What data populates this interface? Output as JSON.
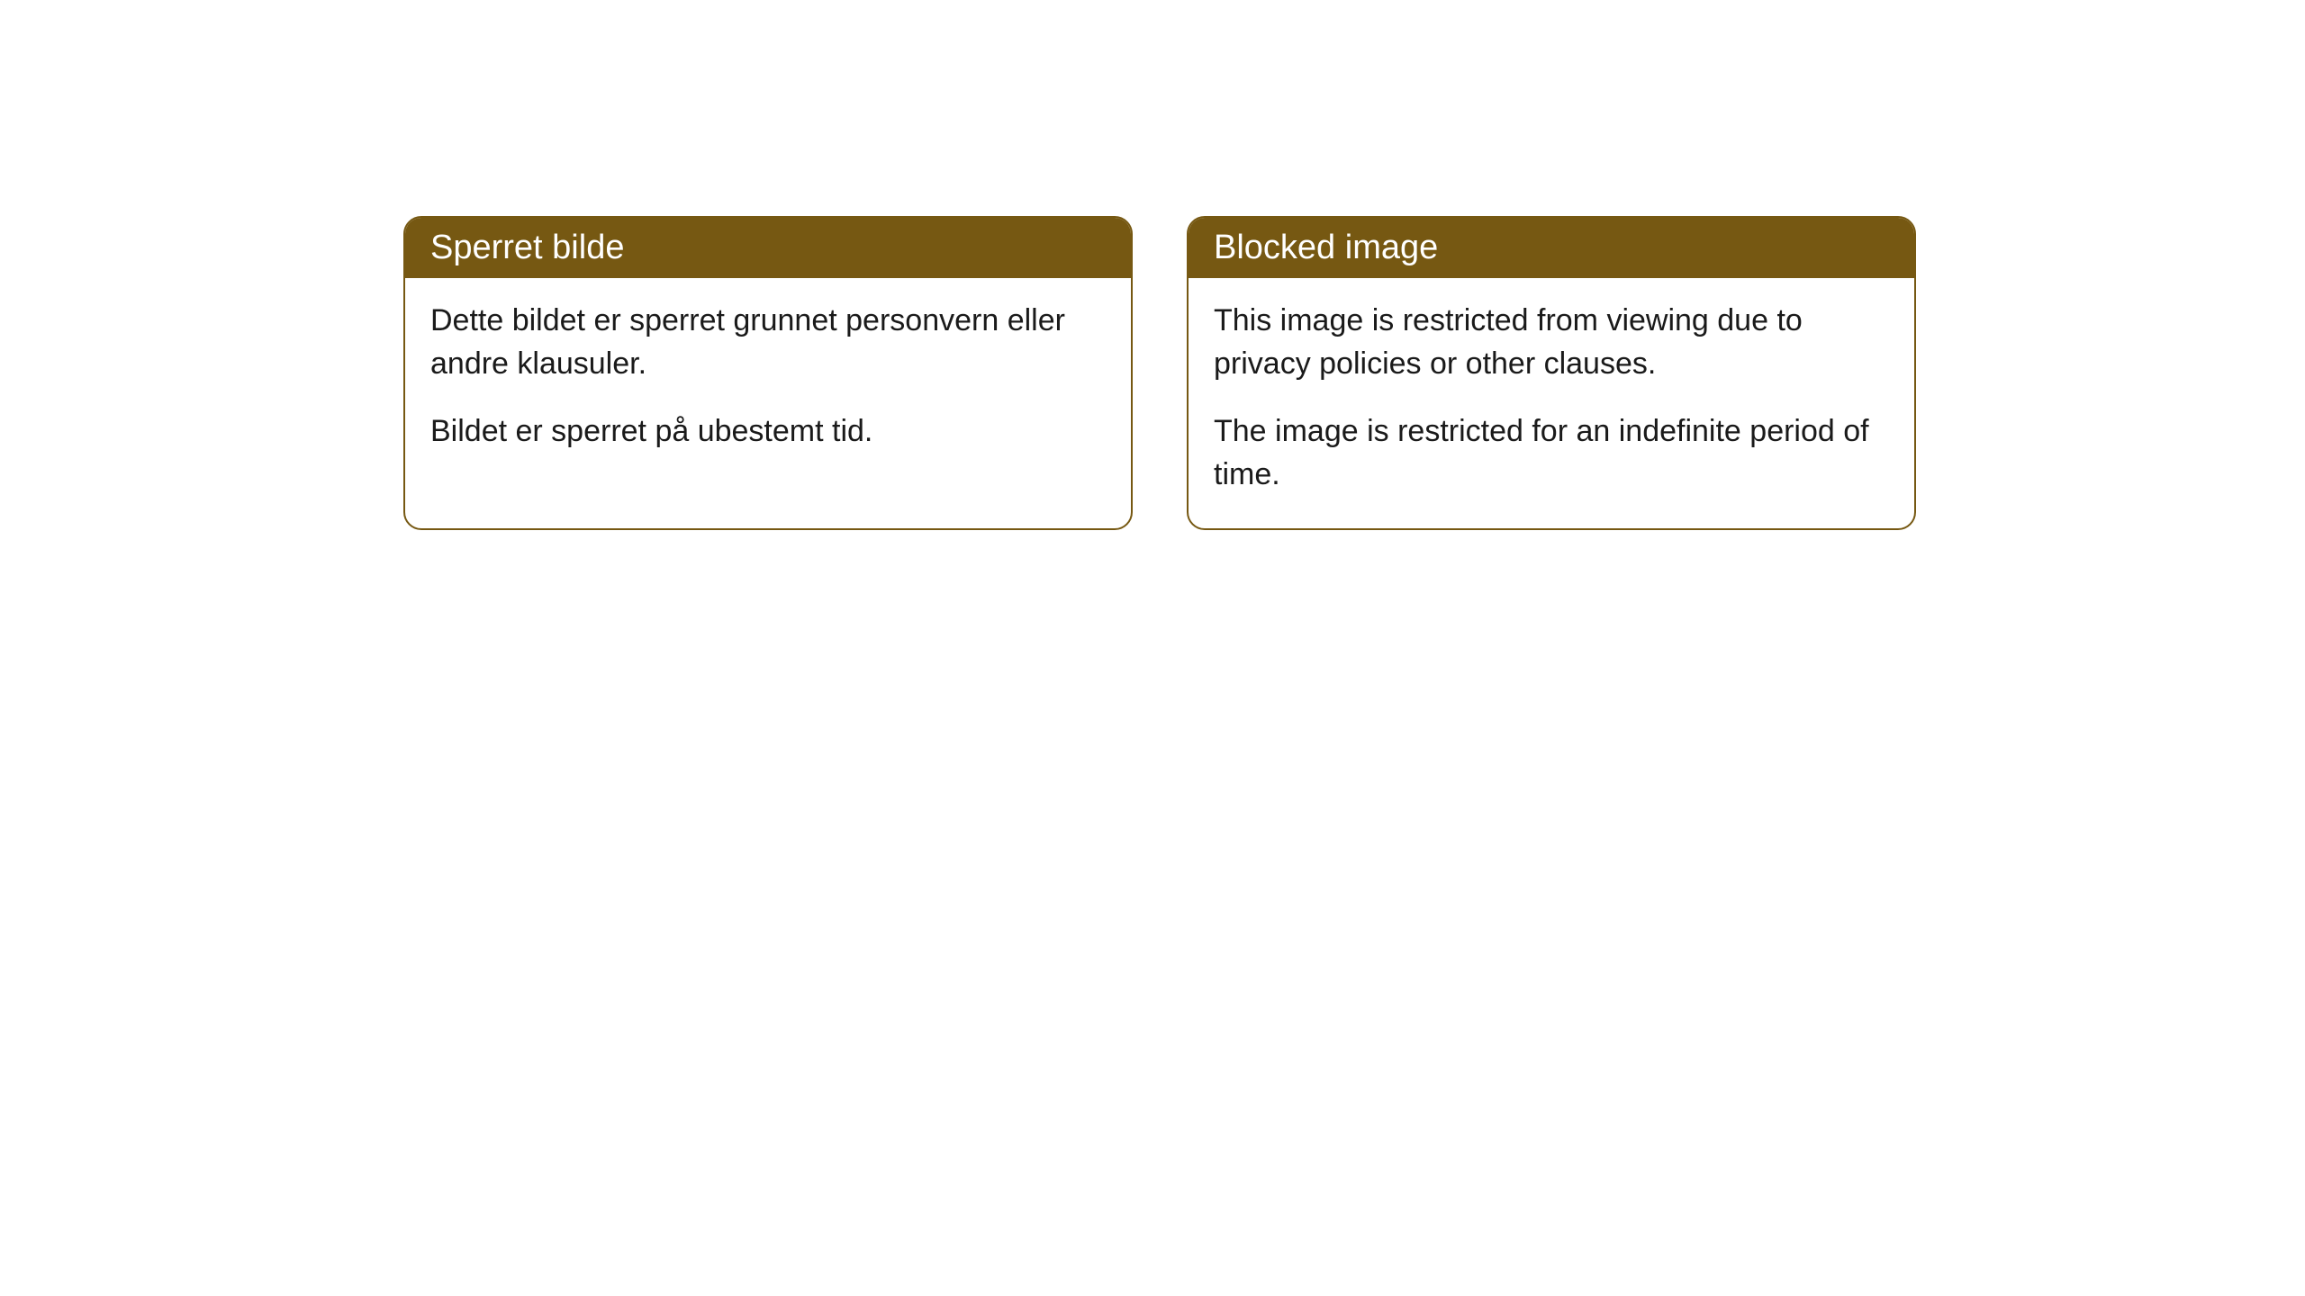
{
  "cards": [
    {
      "header": "Sperret bilde",
      "paragraph1": "Dette bildet er sperret grunnet personvern eller andre klausuler.",
      "paragraph2": "Bildet er sperret på ubestemt tid."
    },
    {
      "header": "Blocked image",
      "paragraph1": "This image is restricted from viewing due to privacy policies or other clauses.",
      "paragraph2": "The image is restricted for an indefinite period of time."
    }
  ],
  "styling": {
    "card_border_color": "#765812",
    "card_header_bg": "#765812",
    "card_header_text_color": "#ffffff",
    "card_body_bg": "#ffffff",
    "card_body_text_color": "#1a1a1a",
    "card_border_radius": 20,
    "header_fontsize": 38,
    "body_fontsize": 34
  }
}
